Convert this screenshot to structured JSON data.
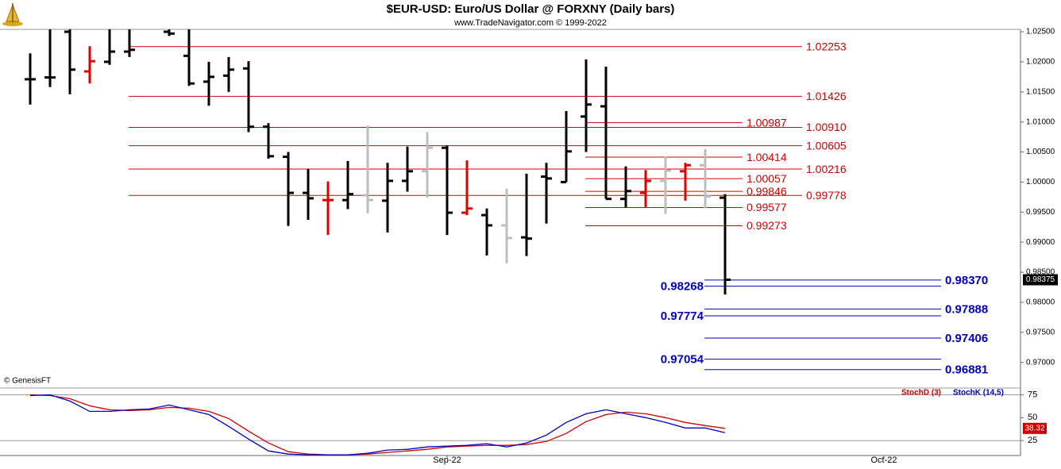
{
  "title": "$EUR-USD:  Euro/US Dollar @ FORXNY  (Daily bars)",
  "subtitle": "www.TradeNavigator.com © 1999-2022",
  "credit": "© GenesisFT",
  "chart_data": [
    {
      "type": "ohlc",
      "ylim": [
        0.966,
        1.0254
      ],
      "yticks": [
        {
          "value": 1.025,
          "label": "1.02500"
        },
        {
          "value": 1.02,
          "label": "1.02000"
        },
        {
          "value": 1.015,
          "label": "1.01500"
        },
        {
          "value": 1.01,
          "label": "1.01000"
        },
        {
          "value": 1.005,
          "label": "1.00500"
        },
        {
          "value": 1.0,
          "label": "1.00000"
        },
        {
          "value": 0.995,
          "label": "0.99500"
        },
        {
          "value": 0.99,
          "label": "0.99000"
        },
        {
          "value": 0.985,
          "label": "0.98500"
        },
        {
          "value": 0.98,
          "label": "0.98000"
        },
        {
          "value": 0.975,
          "label": "0.97500"
        },
        {
          "value": 0.97,
          "label": "0.97000"
        }
      ],
      "open": [
        1.0171,
        1.0174,
        1.025,
        1.0184,
        1.02,
        1.0217,
        null,
        1.025,
        1.021,
        1.0167,
        1.0177,
        1.0189,
        1.0092,
        1.0042,
        0.9982,
        0.997,
        0.997,
        0.9978,
        0.9969,
        1.0002,
        1.0018,
        1.0057,
        0.9949,
        0.9945,
        0.9928,
        0.9908,
        1.0009,
        1.0,
        1.0109,
        1.0126,
        0.9972,
        0.9982,
        1.0002,
        1.0018,
        1.0028,
        0.9974,
        null,
        null,
        null,
        null,
        null,
        null,
        null,
        null,
        null,
        null,
        null,
        null,
        null,
        null
      ],
      "high": [
        1.0214,
        1.0254,
        1.0254,
        1.0226,
        1.0254,
        1.0254,
        null,
        1.0254,
        1.0254,
        1.02,
        1.0208,
        1.0201,
        1.0098,
        1.005,
        1.0022,
        1.0001,
        1.0035,
        1.0094,
        1.0032,
        1.0059,
        1.0083,
        1.0061,
        1.0036,
        0.9956,
        0.9989,
        1.0014,
        1.0032,
        1.0118,
        1.0204,
        1.0192,
        1.0026,
        1.002,
        1.0042,
        1.0032,
        1.0055,
        0.998,
        null,
        null,
        null,
        null,
        null,
        null,
        null,
        null,
        null,
        null,
        null,
        null,
        null,
        null
      ],
      "low": [
        1.0129,
        1.0158,
        1.0146,
        1.0164,
        1.0195,
        1.0208,
        null,
        1.0243,
        1.016,
        1.0127,
        1.015,
        1.0083,
        1.0039,
        0.9927,
        0.9937,
        0.9912,
        0.9955,
        0.9948,
        0.9916,
        0.9984,
        0.9974,
        0.9912,
        0.9945,
        0.9878,
        0.9865,
        0.9877,
        0.9931,
        1.0,
        1.005,
        0.9972,
        0.9957,
        0.9957,
        0.9947,
        0.9969,
        0.9957,
        0.9813,
        null,
        null,
        null,
        null,
        null,
        null,
        null,
        null,
        null,
        null,
        null,
        null,
        null,
        null
      ],
      "close": [
        1.0171,
        1.0174,
        1.0187,
        1.0201,
        1.0217,
        1.022,
        null,
        1.0247,
        1.0164,
        1.0175,
        1.0187,
        1.0092,
        1.0043,
        0.9982,
        0.9973,
        0.997,
        0.998,
        0.997,
        1.0002,
        1.0018,
        1.0057,
        0.9949,
        0.9956,
        0.9928,
        0.9907,
        0.9906,
        1.0006,
        1.0051,
        1.0129,
        0.9972,
        0.9985,
        1.0002,
        1.0019,
        1.0028,
        0.9976,
        0.98375,
        null,
        null,
        null,
        null,
        null,
        null,
        null,
        null,
        null,
        null,
        null,
        null,
        null,
        null
      ],
      "colors": [
        "#000000",
        "#000000",
        "#000000",
        "#e00000",
        "#000000",
        "#000000",
        null,
        "#000000",
        "#000000",
        "#000000",
        "#000000",
        "#000000",
        "#000000",
        "#000000",
        "#000000",
        "#e00000",
        "#000000",
        "#bdbdbd",
        "#000000",
        "#000000",
        "#bdbdbd",
        "#000000",
        "#e00000",
        "#000000",
        "#bdbdbd",
        "#000000",
        "#000000",
        "#000000",
        "#000000",
        "#000000",
        "#000000",
        "#e00000",
        "#bdbdbd",
        "#e00000",
        "#bdbdbd",
        "#000000",
        null,
        null,
        null,
        null,
        null,
        null,
        null,
        null,
        null,
        null,
        null,
        null,
        null,
        null
      ],
      "levels": [
        {
          "color": "#d00000",
          "values": [
            1.02253,
            1.01426,
            {
              "value": 1.0091,
              "label": "1.00910"
            },
            1.00605,
            1.00216,
            0.99778
          ]
        },
        {
          "color": "#d00000",
          "values": [
            1.00987,
            1.00414,
            1.00057,
            0.99846,
            0.99577,
            0.99273
          ]
        },
        {
          "color": "#0000c0",
          "values": [
            {
              "value": 0.9837,
              "label": "0.98370"
            },
            0.97888,
            0.97406,
            0.96881
          ]
        },
        {
          "color": "#0000c0",
          "values": [
            0.98268,
            0.97774,
            0.97054
          ]
        }
      ],
      "last_value": {
        "value": 0.98375,
        "label": "0.98375"
      }
    },
    {
      "type": "line",
      "categories": [
        null,
        null,
        null,
        null,
        null,
        null,
        null,
        null,
        null,
        null,
        null,
        null,
        null,
        null,
        null,
        null,
        null,
        null,
        null,
        null,
        null,
        "Sep-22",
        null,
        null,
        null,
        null,
        null,
        null,
        null,
        null,
        null,
        null,
        null,
        null,
        null,
        null,
        null,
        null,
        null,
        null,
        null,
        null,
        null,
        "Oct-22",
        null,
        null,
        null,
        null,
        null,
        null
      ],
      "ylim": [
        9,
        79.3
      ],
      "yticks": [
        75,
        50,
        25
      ],
      "hlines": [
        75,
        25
      ],
      "series": [
        {
          "name": "StochD (3)",
          "color": "#d00000",
          "values": [
            75.0,
            74.1,
            70.7,
            62.9,
            58.6,
            57.8,
            58.6,
            61.2,
            60.3,
            56.9,
            49.1,
            35.3,
            22.4,
            12.9,
            10.3,
            9.5,
            9.5,
            10.3,
            12.1,
            13.8,
            15.5,
            18.1,
            19.0,
            19.8,
            19.8,
            20.7,
            24.1,
            32.8,
            45.7,
            53.4,
            56.0,
            54.3,
            50,
            44.8,
            41.4,
            38.32,
            null,
            null,
            null,
            null,
            null,
            null,
            null,
            null,
            null,
            null,
            null,
            null,
            null,
            null
          ]
        },
        {
          "name": "StochK (14,5)",
          "color": "#0000c8",
          "values": [
            74.1,
            75.0,
            68.1,
            56.9,
            56.9,
            58.6,
            59.5,
            63.8,
            58.6,
            53.4,
            40.5,
            26.7,
            13.8,
            10.3,
            9.5,
            9.5,
            9.5,
            11.2,
            14.7,
            15.5,
            18.1,
            19.0,
            19.8,
            21.6,
            18.1,
            22.4,
            31.0,
            44.8,
            54.3,
            58.6,
            54.3,
            50,
            44.8,
            38.8,
            38.8,
            33.6,
            null,
            null,
            null,
            null,
            null,
            null,
            null,
            null,
            null,
            null,
            null,
            null,
            null,
            null
          ]
        }
      ],
      "last_value": {
        "value": 38.32,
        "label": "38.32"
      }
    }
  ]
}
